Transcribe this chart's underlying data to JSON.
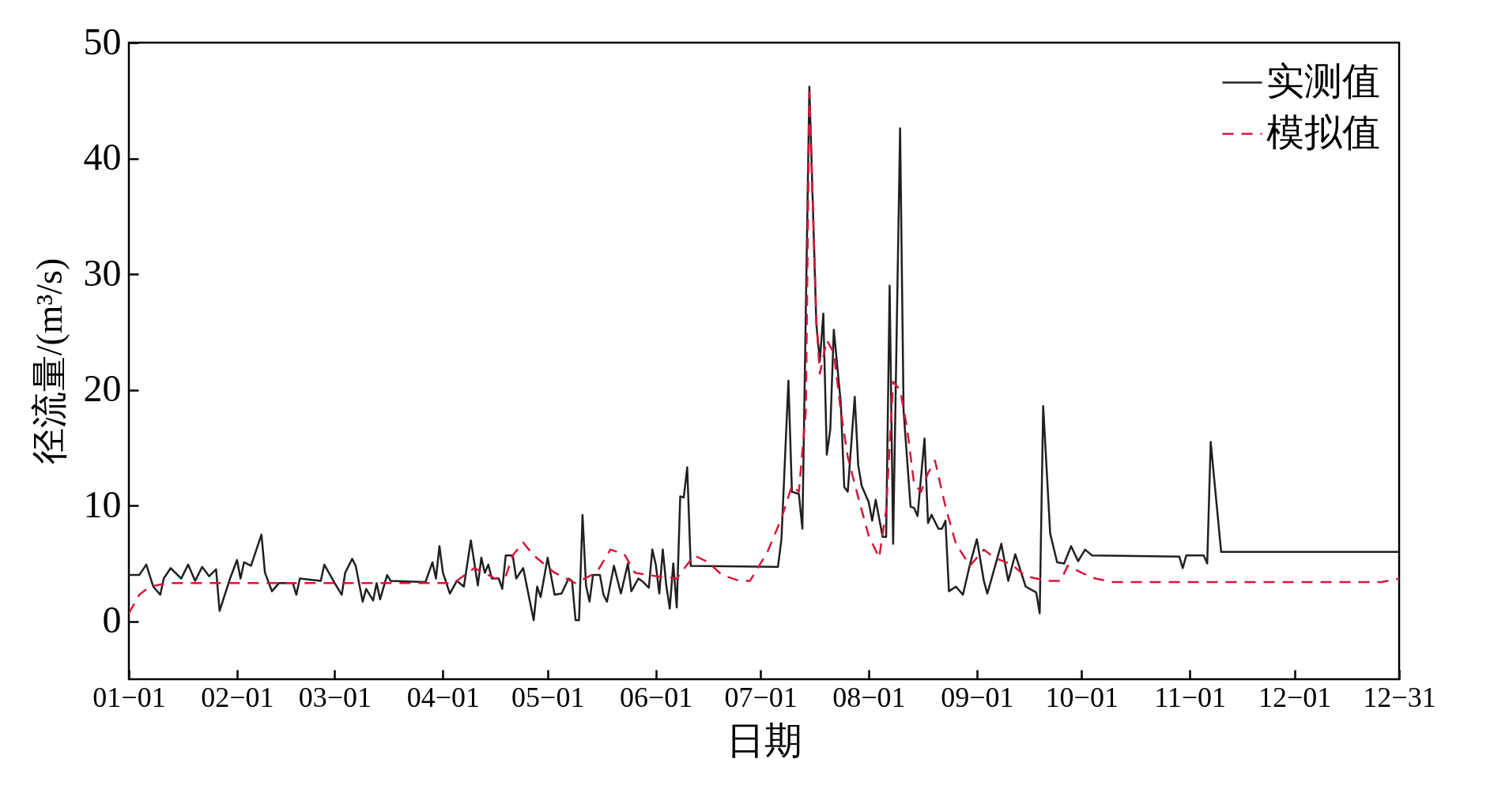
{
  "chart_data": {
    "type": "line",
    "xlabel": "日期",
    "ylabel": "径流量/(m³/s)",
    "xlim": [
      "--01-01",
      "--12-31"
    ],
    "xticks": [
      {
        "value": "--01-01",
        "label": "01−01"
      },
      {
        "value": "--02-01",
        "label": "02−01"
      },
      {
        "value": "--03-01",
        "label": "03−01"
      },
      {
        "value": "--04-01",
        "label": "04−01"
      },
      {
        "value": "--05-01",
        "label": "05−01"
      },
      {
        "value": "--06-01",
        "label": "06−01"
      },
      {
        "value": "--07-01",
        "label": "07−01"
      },
      {
        "value": "--08-01",
        "label": "08−01"
      },
      {
        "value": "--09-01",
        "label": "09−01"
      },
      {
        "value": "--10-01",
        "label": "10−01"
      },
      {
        "value": "--11-01",
        "label": "11−01"
      },
      {
        "value": "--12-01",
        "label": "12−01"
      },
      {
        "value": "--12-31",
        "label": "12−31"
      }
    ],
    "ylim": [
      -5,
      50
    ],
    "yticks": [
      0,
      10,
      20,
      30,
      40,
      50
    ],
    "grid": false,
    "legend": "top right",
    "marker": "none",
    "series": [
      {
        "name": "实测值",
        "color": "#231f20",
        "line_style": "solid",
        "x": [
          "--01-01",
          "--01-04",
          "--01-06",
          "--01-08",
          "--01-10",
          "--01-11",
          "--01-13",
          "--01-16",
          "--01-18",
          "--01-20",
          "--01-22",
          "--01-24",
          "--01-26",
          "--01-27",
          "--01-30",
          "--02-01",
          "--02-02",
          "--02-03",
          "--02-05",
          "--02-08",
          "--02-09",
          "--02-11",
          "--02-13",
          "--02-17",
          "--02-18",
          "--02-19",
          "--02-25",
          "--02-26",
          "--03-01",
          "--03-03",
          "--03-04",
          "--03-06",
          "--03-07",
          "--03-09",
          "--03-10",
          "--03-12",
          "--03-13",
          "--03-14",
          "--03-16",
          "--03-17",
          "--03-27",
          "--03-29",
          "--03-30",
          "--03-31",
          "--04-01",
          "--04-03",
          "--04-05",
          "--04-07",
          "--04-09",
          "--04-11",
          "--04-12",
          "--04-13",
          "--04-14",
          "--04-15",
          "--04-17",
          "--04-18",
          "--04-19",
          "--04-21",
          "--04-22",
          "--04-24",
          "--04-27",
          "--04-28",
          "--04-29",
          "--05-01",
          "--05-03",
          "--05-05",
          "--05-07",
          "--05-08",
          "--05-09",
          "--05-10",
          "--05-11",
          "--05-12",
          "--05-13",
          "--05-14",
          "--05-16",
          "--05-17",
          "--05-18",
          "--05-20",
          "--05-22",
          "--05-24",
          "--05-25",
          "--05-27",
          "--05-28",
          "--05-30",
          "--05-31",
          "--06-01",
          "--06-02",
          "--06-03",
          "--06-04",
          "--06-05",
          "--06-06",
          "--06-07",
          "--06-08",
          "--06-09",
          "--06-10",
          "--06-11",
          "--07-06",
          "--07-07",
          "--07-09",
          "--07-10",
          "--07-12",
          "--07-13",
          "--07-15",
          "--07-17",
          "--07-18",
          "--07-19",
          "--07-20",
          "--07-21",
          "--07-22",
          "--07-24",
          "--07-25",
          "--07-26",
          "--07-28",
          "--07-29",
          "--07-30",
          "--08-01",
          "--08-02",
          "--08-03",
          "--08-05",
          "--08-06",
          "--08-07",
          "--08-08",
          "--08-10",
          "--08-11",
          "--08-13",
          "--08-14",
          "--08-15",
          "--08-17",
          "--08-18",
          "--08-19",
          "--08-21",
          "--08-22",
          "--08-23",
          "--08-24",
          "--08-26",
          "--08-28",
          "--08-30",
          "--09-01",
          "--09-03",
          "--09-04",
          "--09-08",
          "--09-10",
          "--09-12",
          "--09-15",
          "--09-18",
          "--09-19",
          "--09-20",
          "--09-22",
          "--09-24",
          "--09-26",
          "--09-28",
          "--09-30",
          "--10-02",
          "--10-04",
          "--10-29",
          "--10-30",
          "--10-31",
          "--11-05",
          "--11-06",
          "--11-07",
          "--11-10",
          "--12-31"
        ],
        "values": [
          4.0,
          4.0,
          4.9,
          3.0,
          2.3,
          3.7,
          4.6,
          3.7,
          4.9,
          3.5,
          4.7,
          3.9,
          4.5,
          0.9,
          3.7,
          5.3,
          3.7,
          5.1,
          4.8,
          7.5,
          4.2,
          2.6,
          3.3,
          3.3,
          2.3,
          3.7,
          3.5,
          4.9,
          3.3,
          2.3,
          4.2,
          5.4,
          4.8,
          1.7,
          2.8,
          1.8,
          3.3,
          1.9,
          4.0,
          3.5,
          3.4,
          5.1,
          3.7,
          6.5,
          4.2,
          2.4,
          3.5,
          3.0,
          7.0,
          3.1,
          5.5,
          4.2,
          4.9,
          3.7,
          3.7,
          2.8,
          5.7,
          5.7,
          3.7,
          4.6,
          0.1,
          3.0,
          2.1,
          5.5,
          2.3,
          2.4,
          3.7,
          3.5,
          0.1,
          0.1,
          9.2,
          3.1,
          1.7,
          4.0,
          4.0,
          2.3,
          1.7,
          4.8,
          2.4,
          5.0,
          2.6,
          3.7,
          3.5,
          2.9,
          6.2,
          4.9,
          2.4,
          6.2,
          3.1,
          1.1,
          5.0,
          1.2,
          10.8,
          10.7,
          13.3,
          4.8,
          4.7,
          7.1,
          20.8,
          11.2,
          11.0,
          8.0,
          46.2,
          25.7,
          22.5,
          26.6,
          14.4,
          16.6,
          25.2,
          18.9,
          11.6,
          11.2,
          19.4,
          13.5,
          11.7,
          10.3,
          8.7,
          10.5,
          7.3,
          7.3,
          29.0,
          6.7,
          42.6,
          18.2,
          9.9,
          9.8,
          9.1,
          15.8,
          8.5,
          9.2,
          8.0,
          8.0,
          8.7,
          2.6,
          3.0,
          2.3,
          4.9,
          7.1,
          3.5,
          2.4,
          6.7,
          3.5,
          5.8,
          3.0,
          2.5,
          0.7,
          18.6,
          7.6,
          5.1,
          5.0,
          6.5,
          5.2,
          6.2,
          5.7,
          5.6,
          4.6,
          5.7,
          5.7,
          5.0,
          15.5,
          6.0,
          6.0
        ]
      },
      {
        "name": "模拟值",
        "color": "#d6173a",
        "line_style": "dashed",
        "x": [
          "--01-01",
          "--01-04",
          "--01-07",
          "--01-12",
          "--04-04",
          "--04-10",
          "--04-16",
          "--04-19",
          "--04-21",
          "--04-24",
          "--04-27",
          "--05-03",
          "--05-09",
          "--05-15",
          "--05-19",
          "--05-23",
          "--05-26",
          "--06-01",
          "--06-07",
          "--06-12",
          "--06-16",
          "--06-20",
          "--06-25",
          "--06-28",
          "--07-03",
          "--07-07",
          "--07-10",
          "--07-12",
          "--07-14",
          "--07-15",
          "--07-17",
          "--07-18",
          "--07-20",
          "--07-22",
          "--07-24",
          "--07-26",
          "--07-29",
          "--08-01",
          "--08-04",
          "--08-06",
          "--08-08",
          "--08-10",
          "--08-12",
          "--08-14",
          "--08-16",
          "--08-18",
          "--08-20",
          "--08-23",
          "--08-26",
          "--08-30",
          "--09-03",
          "--09-06",
          "--09-11",
          "--09-15",
          "--09-21",
          "--09-25",
          "--09-27",
          "--10-01",
          "--10-05",
          "--10-10",
          "--12-26",
          "--12-31"
        ],
        "values": [
          0.7,
          2.3,
          3.0,
          3.3,
          3.3,
          4.6,
          3.7,
          3.9,
          5.7,
          6.8,
          5.7,
          4.2,
          3.3,
          4.2,
          6.2,
          5.8,
          4.2,
          3.9,
          3.7,
          5.7,
          5.1,
          4.0,
          3.5,
          3.5,
          6.0,
          8.9,
          11.7,
          11.2,
          18.2,
          45.7,
          26.0,
          21.4,
          24.3,
          23.2,
          18.2,
          14.2,
          10.7,
          7.4,
          5.5,
          9.6,
          20.7,
          20.0,
          16.7,
          11.9,
          11.2,
          12.8,
          13.9,
          9.9,
          6.7,
          4.8,
          6.2,
          5.5,
          4.9,
          3.9,
          3.5,
          3.5,
          4.8,
          4.2,
          3.7,
          3.4,
          3.4,
          3.7
        ]
      }
    ]
  }
}
